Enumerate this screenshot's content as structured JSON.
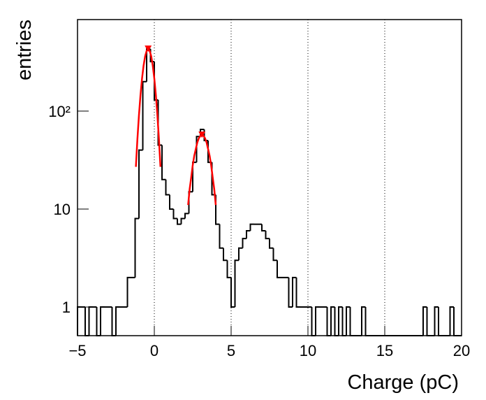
{
  "chart_data": {
    "type": "histogram",
    "x_label": "Charge (pC)",
    "y_label": "entries",
    "log_y": true,
    "grid_x": true,
    "xlim": [
      -5,
      20
    ],
    "xticks": [
      {
        "value": -5,
        "label": "−5"
      },
      0,
      5,
      10,
      15,
      20
    ],
    "ylim": [
      0.51,
      860
    ],
    "yticks": [
      1,
      10,
      {
        "value": 100,
        "label": "10²"
      }
    ],
    "color": "#000000",
    "bins": [
      -5,
      -4.75,
      -4.5,
      -4.25,
      -4,
      -3.75,
      -3.5,
      -3.25,
      -3,
      -2.75,
      -2.5,
      -2.25,
      -2,
      -1.75,
      -1.5,
      -1.25,
      -1,
      -0.75,
      -0.5,
      -0.25,
      0,
      0.25,
      0.5,
      0.75,
      1,
      1.25,
      1.5,
      1.75,
      2,
      2.25,
      2.5,
      2.75,
      3,
      3.25,
      3.5,
      3.75,
      4,
      4.25,
      4.5,
      4.75,
      5,
      5.25,
      5.5,
      5.75,
      6,
      6.25,
      6.5,
      6.75,
      7,
      7.25,
      7.5,
      7.75,
      8,
      8.25,
      8.5,
      8.75,
      9,
      9.25,
      9.5,
      9.75,
      10,
      10.25,
      10.5,
      10.75,
      11,
      11.25,
      11.5,
      11.75,
      12,
      12.25,
      12.5,
      12.75,
      13,
      13.25,
      13.5,
      13.75,
      14,
      14.25,
      14.5,
      14.75,
      15,
      15.25,
      15.5,
      15.75,
      16,
      16.25,
      16.5,
      16.75,
      17,
      17.25,
      17.5,
      17.75,
      18,
      18.25,
      18.5,
      18.75,
      19,
      19.25,
      19.5,
      19.75,
      20
    ],
    "values": [
      1,
      1,
      0,
      1,
      1,
      0,
      1,
      1,
      1,
      0,
      1,
      1,
      1,
      2,
      2,
      8,
      40,
      200,
      430,
      320,
      130,
      45,
      20,
      14,
      10,
      8,
      7,
      8,
      9,
      15,
      30,
      55,
      65,
      50,
      30,
      14,
      7,
      4,
      3,
      2,
      1,
      3,
      4,
      5,
      6,
      7,
      7,
      7,
      6,
      5,
      4,
      3,
      2,
      2,
      2,
      1,
      2,
      1,
      1,
      1,
      1,
      0,
      1,
      1,
      1,
      0,
      1,
      0,
      1,
      0,
      1,
      0,
      0,
      0,
      1,
      0,
      0,
      0,
      0,
      0,
      0,
      0,
      0,
      0,
      0,
      0,
      0,
      0,
      0,
      0,
      1,
      0,
      0,
      1,
      0,
      0,
      0,
      1,
      0,
      0
    ],
    "fits": [
      {
        "color": "#ff0000",
        "x": [
          -1.2,
          -1.1,
          -1.0,
          -0.9,
          -0.8,
          -0.7,
          -0.6,
          -0.5,
          -0.4,
          -0.3,
          -0.2,
          -0.1,
          0,
          0.1,
          0.2,
          0.3,
          0.4
        ],
        "values": [
          27,
          52,
          91,
          146,
          215,
          291,
          362,
          412,
          430,
          412,
          362,
          291,
          215,
          146,
          91,
          52,
          27
        ]
      },
      {
        "color": "#ff0000",
        "x": [
          2.2,
          2.3,
          2.4,
          2.5,
          2.6,
          2.7,
          2.8,
          2.9,
          3.0,
          3.1,
          3.2,
          3.3,
          3.4,
          3.5,
          3.6,
          3.7,
          3.8,
          3.9,
          4.0
        ],
        "values": [
          11,
          16,
          21,
          28,
          35,
          41,
          48,
          53,
          56,
          57,
          56,
          53,
          48,
          41,
          35,
          28,
          21,
          16,
          11
        ]
      }
    ],
    "peaks": {
      "color": "#ff0000",
      "x": [
        -0.4,
        3.1
      ],
      "values": [
        430,
        57
      ]
    }
  }
}
